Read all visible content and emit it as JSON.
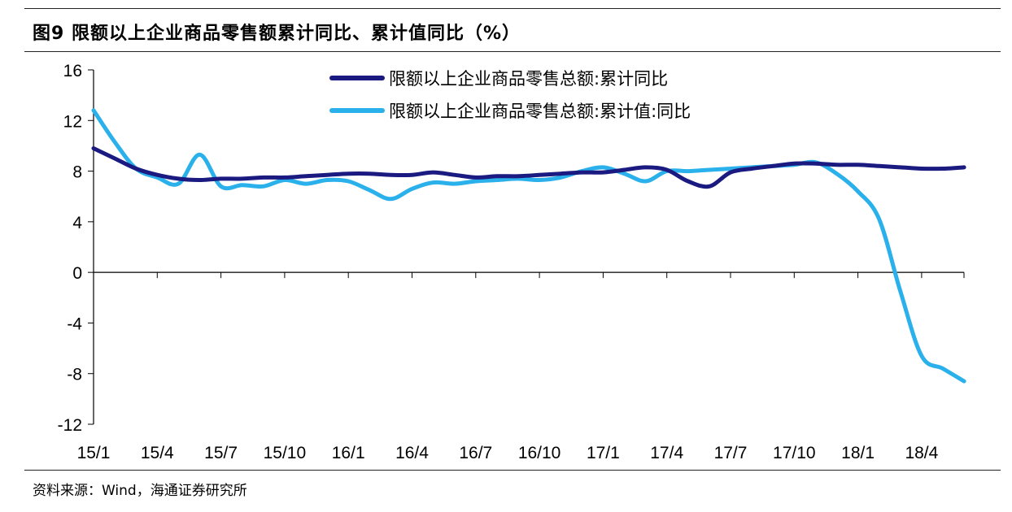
{
  "header": {
    "title": "图9   限额以上企业商品零售额累计同比、累计值同比（%）"
  },
  "footer": {
    "source": "资料来源：Wind，海通证券研究所"
  },
  "chart_data": {
    "type": "line",
    "ylim": [
      -12,
      16
    ],
    "y_ticks": [
      "16",
      "12",
      "8",
      "4",
      "0",
      "-4",
      "-8",
      "-12"
    ],
    "x_tick_labels": [
      "15/1",
      "15/4",
      "15/7",
      "15/10",
      "16/1",
      "16/4",
      "16/7",
      "16/10",
      "17/1",
      "17/4",
      "17/7",
      "17/10",
      "18/1",
      "18/4"
    ],
    "x": [
      "15/1",
      "15/2",
      "15/3",
      "15/4",
      "15/5",
      "15/6",
      "15/7",
      "15/8",
      "15/9",
      "15/10",
      "15/11",
      "15/12",
      "16/1",
      "16/2",
      "16/3",
      "16/4",
      "16/5",
      "16/6",
      "16/7",
      "16/8",
      "16/9",
      "16/10",
      "16/11",
      "16/12",
      "17/1",
      "17/2",
      "17/3",
      "17/4",
      "17/5",
      "17/6",
      "17/7",
      "17/8",
      "17/9",
      "17/10",
      "17/11",
      "17/12",
      "18/1",
      "18/2",
      "18/3",
      "18/4",
      "18/5",
      "18/6"
    ],
    "legend_position": "top-right",
    "grid": false,
    "series": [
      {
        "name": "限额以上企业商品零售总额:累计同比",
        "color": "#1a1a80",
        "values": [
          9.8,
          9.0,
          8.2,
          7.7,
          7.4,
          7.3,
          7.4,
          7.4,
          7.5,
          7.5,
          7.6,
          7.7,
          7.8,
          7.8,
          7.7,
          7.7,
          7.9,
          7.7,
          7.5,
          7.6,
          7.6,
          7.7,
          7.8,
          7.9,
          7.9,
          8.1,
          8.3,
          8.1,
          7.2,
          6.8,
          7.9,
          8.2,
          8.4,
          8.6,
          8.6,
          8.5,
          8.5,
          8.4,
          8.3,
          8.2,
          8.2,
          8.3
        ]
      },
      {
        "name": "限额以上企业商品零售总额:累计值:同比",
        "color": "#2ab0ea",
        "values": [
          12.8,
          10.3,
          8.2,
          7.5,
          7.0,
          9.3,
          6.8,
          6.9,
          6.8,
          7.3,
          7.0,
          7.3,
          7.2,
          6.5,
          5.8,
          6.6,
          7.1,
          7.0,
          7.2,
          7.3,
          7.4,
          7.3,
          7.5,
          8.0,
          8.3,
          7.8,
          7.2,
          8.0,
          8.0,
          8.1,
          8.2,
          8.3,
          8.4,
          8.5,
          8.7,
          7.8,
          6.4,
          4.2,
          -1.5,
          -6.6,
          -7.6,
          -8.6
        ]
      }
    ]
  }
}
